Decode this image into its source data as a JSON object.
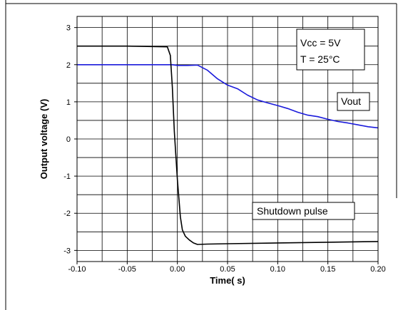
{
  "chart_data": {
    "type": "line",
    "xlabel": "Time(  s)",
    "ylabel": "Output voltage (V)",
    "xlim": [
      -0.1,
      0.2
    ],
    "ylim": [
      -3.3,
      3.3
    ],
    "xticks": [
      -0.1,
      -0.05,
      0.0,
      0.05,
      0.1,
      0.15,
      0.2
    ],
    "xtick_labels": [
      "-0.10",
      "-0.05",
      "0.00",
      "0.05",
      "0.10",
      "0.15",
      "0.20"
    ],
    "yticks": [
      -3,
      -2,
      -1,
      0,
      1,
      2,
      3
    ],
    "ytick_labels": [
      "-3",
      "-2",
      "-1",
      "0",
      "1",
      "2",
      "3"
    ],
    "grid": true,
    "annotations": {
      "conditions": [
        "Vcc = 5V",
        "T = 25°C"
      ],
      "vout_label": "Vout",
      "shutdown_label": "Shutdown pulse"
    },
    "series": [
      {
        "name": "Vout",
        "color": "#1a1adb",
        "x": [
          -0.1,
          -0.05,
          -0.005,
          0.0,
          0.01,
          0.02,
          0.03,
          0.04,
          0.05,
          0.06,
          0.07,
          0.08,
          0.09,
          0.1,
          0.11,
          0.12,
          0.13,
          0.14,
          0.15,
          0.16,
          0.17,
          0.18,
          0.19,
          0.2
        ],
        "y": [
          2.0,
          2.0,
          2.0,
          1.98,
          1.98,
          1.99,
          1.85,
          1.62,
          1.45,
          1.35,
          1.18,
          1.05,
          0.97,
          0.9,
          0.82,
          0.72,
          0.64,
          0.6,
          0.53,
          0.47,
          0.43,
          0.38,
          0.33,
          0.3
        ]
      },
      {
        "name": "Shutdown pulse",
        "color": "#000000",
        "x": [
          -0.1,
          -0.05,
          -0.01,
          -0.007,
          -0.005,
          -0.003,
          0.0,
          0.003,
          0.005,
          0.008,
          0.012,
          0.016,
          0.02,
          0.03,
          0.05,
          0.1,
          0.15,
          0.2
        ],
        "y": [
          2.5,
          2.5,
          2.48,
          2.25,
          1.4,
          0.2,
          -1.1,
          -2.1,
          -2.45,
          -2.62,
          -2.72,
          -2.8,
          -2.84,
          -2.83,
          -2.82,
          -2.8,
          -2.78,
          -2.76
        ]
      }
    ]
  }
}
